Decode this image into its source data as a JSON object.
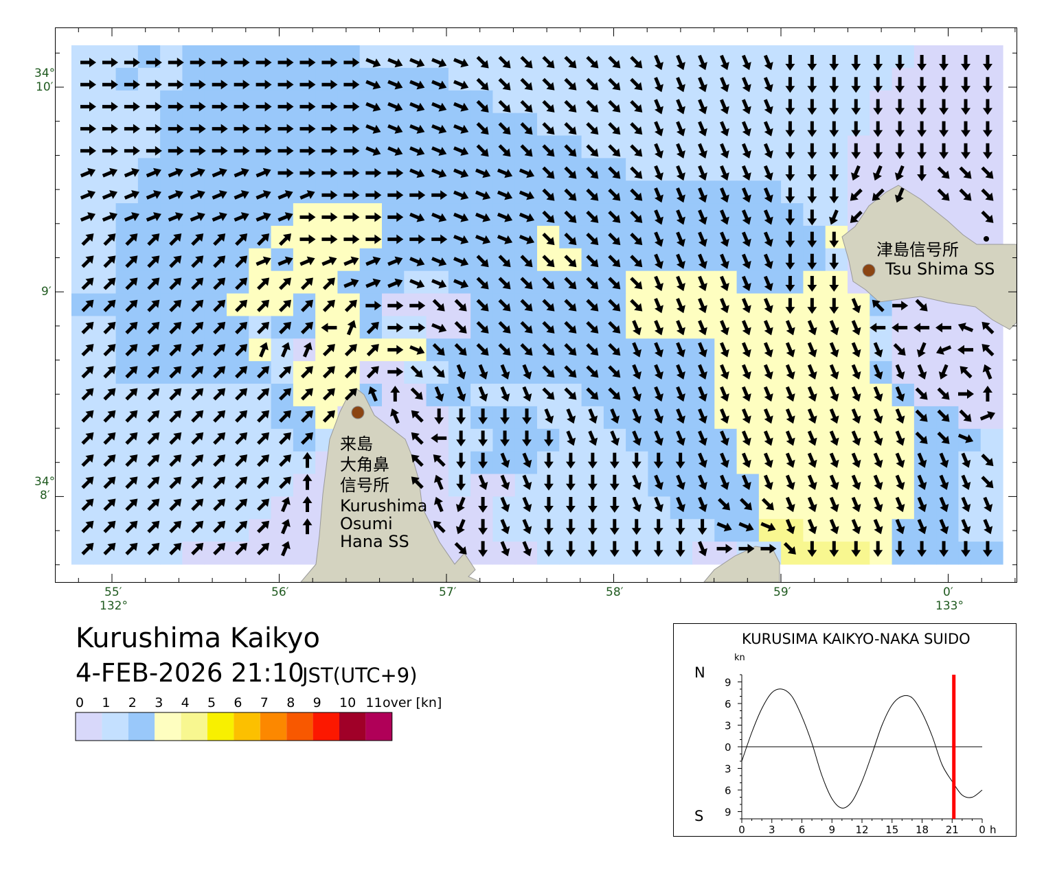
{
  "map": {
    "speed_colors": [
      "#d8d8fa",
      "#c4e0ff",
      "#99c8fa",
      "#fefec0",
      "#f8f790"
    ],
    "land_color": "#d4d3c0",
    "marker_color": "#8b4513",
    "arrow_direction_key": "0=E,1=ESE,2=SE,3=SSE,4=S,5=SSW,6=SW,7=WSW,8=W,9=WNW,a=NW,b=NNW,c=N,d=NNE,e=NE,f=ENE,.=none",
    "speed_class_rows": [
      "111212222222211111111111111111111111110000",
      "112112222222222221111111111111111111100000",
      "111122222222222222211111111111111111000000",
      "111122222222222222222111111111111111000000",
      "111122222222222222222221111111111110000000",
      "111222222222222222222222211111111110000000",
      "111222222222222222222222222222221110000000",
      "112222222233332222222222222222222110000000",
      "112222222333332222222322222222222230000000",
      "112222223233322222222332222222222210000000",
      "112222223333222112222222233333222330000000",
      "222222233323320000222222233333333333200000",
      "112222221223321100222222233333333333100000",
      "112222223103333322222222222223333333100000",
      "112222222133300112222222222223333333200000",
      "111111111233320022111112222223333333320000",
      "111111111223000001222111222223333333332200",
      "111111111121000001122211122222333333332221",
      "111111111110000001222111112222333333332211",
      "111111111100000001001111112222233333332211",
      "111111111000000000011111111222233333332211",
      "111111110000000000011111111112244333322211",
      "111110000000000000000111111100114444322222"
    ],
    "arrow_direction_rows": [
      "000000000000011111222222223333334444444444",
      "000000000000011111222222223333334444444444",
      "000000000000011111222222223333334444444444",
      "000000000000011111222222223333334444444444",
      "000000000000011111222222223333334444444444",
      "fffffffff000000111111222223333334445554222",
      "fffffffffff000000111122222333333444665.222",
      "ffffffffff00000111111222223333334456.....2",
      "eeeeeeeeee0000000111122222333333444.......",
      "eeeeeeeefffffff11122222222333333444.......",
      "eeeeeeeeeeeefff11122222222333333444.......",
      "eeeeeeeeeeeee00022222222223333334443a02...",
      "eeeeeeeeeee8de00122222222333333333338888 9a",
      "eeeeeeeedddeee0122222222233333333333325 78aa",
      "eeeeeeeeeeeeee0223333222233333333333333 5ab",
      "eeeeeeeeeeeeebc2333332222333333333333322 0c",
      "eeeeeeeeeeee..ba44444333333333333333332 22f",
      "eeeeeeeeeee....a844444333333333333333 3221",
      "eeeeeeeeeec....aa443344444443333333333333 2",
      "eeeeeeeeeec....ab4333444433333333333333332",
      "eeeeeeeeedc.....b5433444433332223333333333",
      "eeeeeeeeedc.....a5433444444441113333333333",
      "eeeeeeeeed.......2433444444430002444444444"
    ],
    "stations": {
      "tsushima": {
        "name_ja": "津島信号所",
        "name_en": "Tsu Shima SS"
      },
      "kurushima": {
        "name_ja_lines": [
          "来島",
          "大角鼻",
          "信号所"
        ],
        "name_en_lines": [
          "Kurushima",
          "Osumi",
          "Hana SS"
        ]
      }
    },
    "lat_labels": [
      {
        "deg": "34°",
        "min": "10′"
      },
      {
        "deg": "",
        "min": "9′"
      },
      {
        "deg": "34°",
        "min": "8′"
      }
    ],
    "lon_labels": [
      {
        "min": "55′",
        "deg": "132°"
      },
      {
        "min": "56′",
        "deg": ""
      },
      {
        "min": "57′",
        "deg": ""
      },
      {
        "min": "58′",
        "deg": ""
      },
      {
        "min": "59′",
        "deg": ""
      },
      {
        "min": "0′",
        "deg": "133°"
      }
    ]
  },
  "info": {
    "title": "Kurushima Kaikyo",
    "datetime": "4-FEB-2026 21:10",
    "timezone": "JST(UTC+9)"
  },
  "legend": {
    "labels": [
      "0",
      "1",
      "2",
      "3",
      "4",
      "5",
      "6",
      "7",
      "8",
      "9",
      "10",
      "11"
    ],
    "unit": "over [kn]",
    "colors": [
      "#d8d8fa",
      "#c4e0ff",
      "#99c8fa",
      "#fefec0",
      "#f8f790",
      "#f8f000",
      "#fcc000",
      "#fc8800",
      "#f85800",
      "#fc1800",
      "#a00028",
      "#b00058"
    ]
  },
  "chart_data": {
    "type": "line",
    "title": "KURUSIMA KAIKYO-NAKA SUIDO",
    "ylabel": "kn",
    "north_label": "N",
    "south_label": "S",
    "x": [
      0,
      1,
      2,
      3,
      4,
      5,
      6,
      7,
      8,
      9,
      10,
      11,
      12,
      13,
      14,
      15,
      16,
      17,
      18,
      19,
      20,
      21,
      22,
      23,
      24
    ],
    "values": [
      -2.0,
      2.0,
      5.3,
      7.5,
      8.0,
      7.0,
      4.2,
      0.5,
      -4.0,
      -7.2,
      -8.5,
      -7.6,
      -4.8,
      -1.0,
      3.0,
      5.8,
      7.0,
      6.8,
      4.7,
      1.5,
      -2.5,
      -4.8,
      -6.7,
      -7.0,
      -6.0
    ],
    "xlim": [
      0,
      24
    ],
    "ylim": [
      -10,
      10
    ],
    "x_ticks": [
      "0",
      "3",
      "6",
      "9",
      "12",
      "15",
      "18",
      "21",
      "0"
    ],
    "x_unit": "h",
    "y_ticks": [
      {
        "v": 9,
        "label": "9"
      },
      {
        "v": 6,
        "label": "6"
      },
      {
        "v": 3,
        "label": "3"
      },
      {
        "v": 0,
        "label": "0"
      },
      {
        "v": -3,
        "label": "3"
      },
      {
        "v": -6,
        "label": "6"
      },
      {
        "v": -9,
        "label": "9"
      }
    ],
    "current_time_h": 21.17,
    "current_color": "#ff0000"
  }
}
